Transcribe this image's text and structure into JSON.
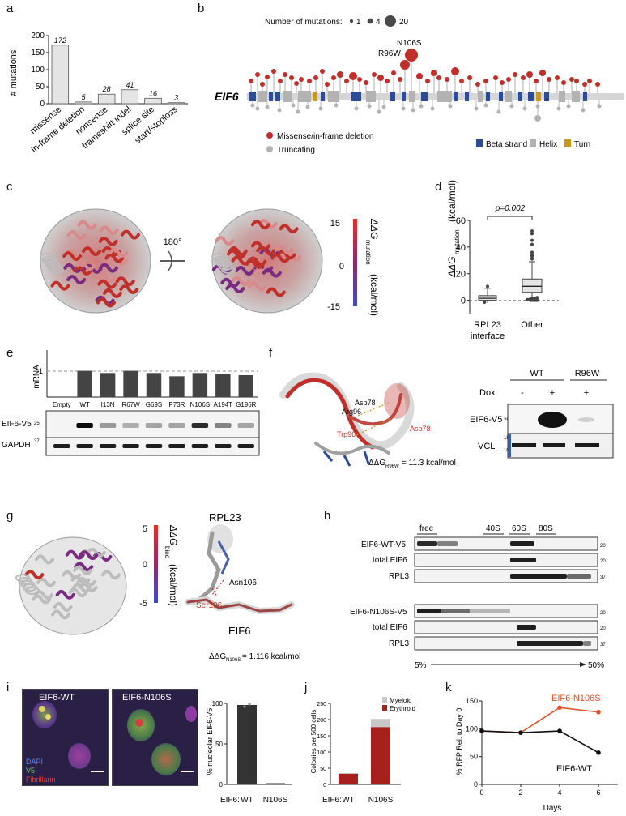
{
  "panels": {
    "a": {
      "label": "a"
    },
    "b": {
      "label": "b"
    },
    "c": {
      "label": "c"
    },
    "d": {
      "label": "d"
    },
    "e": {
      "label": "e"
    },
    "f": {
      "label": "f"
    },
    "g": {
      "label": "g"
    },
    "h": {
      "label": "h"
    },
    "i": {
      "label": "i"
    },
    "j": {
      "label": "j"
    },
    "k": {
      "label": "k"
    }
  },
  "colors": {
    "red": "#c0302b",
    "grey": "#b3b3b3",
    "blue": "#2c4c96",
    "gold": "#c8991d",
    "dark": "#4a4a4a"
  },
  "chart_data": [
    {
      "id": "a",
      "type": "bar",
      "categories": [
        "missense",
        "in-frame deletion",
        "nonsense",
        "frameshift indel",
        "splice site",
        "start/stoploss"
      ],
      "values": [
        172,
        5,
        28,
        41,
        16,
        3
      ],
      "data_labels": [
        "172",
        "5",
        "28",
        "41",
        "16",
        "3"
      ],
      "ylabel": "# mutations",
      "ylim": [
        0,
        200
      ],
      "yticks": [
        "0",
        "50",
        "100",
        "150",
        "200"
      ]
    },
    {
      "id": "d",
      "type": "box",
      "categories": [
        "RPL23 interface",
        "Other"
      ],
      "cat_lines": [
        [
          "RPL23",
          "interface"
        ],
        [
          "Other"
        ]
      ],
      "ylabel": "ΔΔG",
      "ylabel_sub": "mutation",
      "ylabel_unit": "(kcal/mol)",
      "ylim": [
        -10,
        60
      ],
      "yticks": [
        "0",
        "20",
        "40",
        "60"
      ],
      "annotation": "p=0.002",
      "boxes": [
        {
          "whisker_low": -2,
          "q1": 0,
          "median": 1.5,
          "q3": 3.5,
          "whisker_high": 9,
          "outliers": [
            10.5,
            -1.5
          ]
        },
        {
          "whisker_low": 0,
          "q1": 6,
          "median": 10.5,
          "q3": 16,
          "whisker_high": 29,
          "outliers": [
            31,
            33,
            34,
            36,
            42,
            45,
            50,
            52,
            0,
            0,
            0,
            0,
            0.5,
            0.5,
            1,
            1,
            1.5,
            2
          ]
        }
      ]
    },
    {
      "id": "e",
      "type": "bar",
      "categories": [
        "Empty",
        "WT",
        "I13N",
        "R67W",
        "G69S",
        "P73R",
        "N106S",
        "A194T",
        "G196R"
      ],
      "values": [
        0,
        1.2,
        1.1,
        1.2,
        1.1,
        0.95,
        1.1,
        1.05,
        1.0
      ],
      "ylabel": "mRNA",
      "ytick": "1"
    },
    {
      "id": "i",
      "type": "bar",
      "categories": [
        "WT",
        "N106S"
      ],
      "values": [
        98,
        1.5
      ],
      "ylabel": "% nucleolar EIF6-V5",
      "ylim": [
        0,
        100
      ],
      "yticks": [
        "0",
        "50",
        "100"
      ],
      "xprefix": "EIF6:"
    },
    {
      "id": "j",
      "type": "bar",
      "categories": [
        "WT",
        "N106S"
      ],
      "series": [
        {
          "name": "Myeloid",
          "values": [
            2,
            25
          ]
        },
        {
          "name": "Erythroid",
          "values": [
            33,
            177
          ]
        }
      ],
      "ylabel": "Colonies per 500 cells",
      "ylim": [
        0,
        250
      ],
      "yticks": [
        "0",
        "50",
        "100",
        "150",
        "200",
        "250"
      ],
      "xprefix": "EIF6:"
    },
    {
      "id": "k",
      "type": "line",
      "x": [
        0,
        2,
        4,
        6
      ],
      "series": [
        {
          "name": "EIF6-N106S",
          "values": [
            96,
            93,
            138,
            130
          ]
        },
        {
          "name": "EIF6-WT",
          "values": [
            96,
            93,
            96,
            57
          ]
        }
      ],
      "xlabel": "Days",
      "ylabel": "% RFP Rel. to Day 0",
      "ylim": [
        0,
        150
      ],
      "xlim": [
        0,
        7
      ],
      "xticks": [
        "0",
        "2",
        "4",
        "6"
      ],
      "yticks": [
        "0",
        "50",
        "100",
        "150"
      ]
    }
  ],
  "lollipop": {
    "legend_title": "Number of mutations:",
    "legend_sizes": [
      "1",
      "4",
      "20"
    ],
    "gene": "EIF6",
    "callouts": [
      "N106S",
      "R96W"
    ],
    "legend_missense": "Missense/in-frame deletion",
    "legend_truncating": "Truncating",
    "legend_beta": "Beta strand",
    "legend_helix": "Helix",
    "legend_turn": "Turn"
  },
  "panel_c": {
    "rotation": "180°",
    "scale_title": "ΔΔG",
    "scale_sub": "mutation",
    "scale_unit": "(kcal/mol)",
    "scale_max": "15",
    "scale_mid": "0",
    "scale_min": "-15"
  },
  "panel_e": {
    "blots": [
      "EIF6-V5",
      "GAPDH"
    ],
    "mw": [
      "25",
      "37"
    ]
  },
  "panel_f": {
    "residues": [
      "Asp78",
      "Arg96",
      "Trp96",
      "Asp78"
    ],
    "ddg": "ΔΔG",
    "ddg_sub": "R96W",
    "ddg_value": " = 11.3 kcal/mol",
    "cols": [
      "WT",
      "R96W"
    ],
    "dox_label": "Dox",
    "dox": [
      "-",
      "+",
      "+"
    ],
    "blots": [
      "EIF6-V5",
      "VCL"
    ],
    "mw_top": "25",
    "mw_bottom": [
      "150",
      "100"
    ]
  },
  "panel_g": {
    "scale_title": "ΔΔG",
    "scale_sub": "bind",
    "scale_unit": "(kcal/mol)",
    "scale_max": "5",
    "scale_mid": "0",
    "scale_min": "-5",
    "rpl23": "RPL23",
    "asn": "Asn106",
    "ser": "Ser106",
    "eif6": "EIF6",
    "ddg": "ΔΔG",
    "ddg_sub": "N106S",
    "ddg_value": " = 1.116 kcal/mol"
  },
  "panel_h": {
    "fractions": [
      "free",
      "40S",
      "60S",
      "80S"
    ],
    "rows_top": [
      "EIF6-WT-V5",
      "total EIF6",
      "RPL3"
    ],
    "rows_bottom": [
      "EIF6-N106S-V5",
      "total EIF6",
      "RPL3"
    ],
    "mw": [
      "20",
      "20",
      "37",
      "20",
      "20",
      "37"
    ],
    "grad_start": "5%",
    "grad_end": "50%"
  },
  "panel_i": {
    "titles": [
      "EIF6-WT",
      "EIF6-N106S"
    ],
    "stains": [
      "DAPI",
      "V5",
      "Fibrillarin"
    ]
  }
}
